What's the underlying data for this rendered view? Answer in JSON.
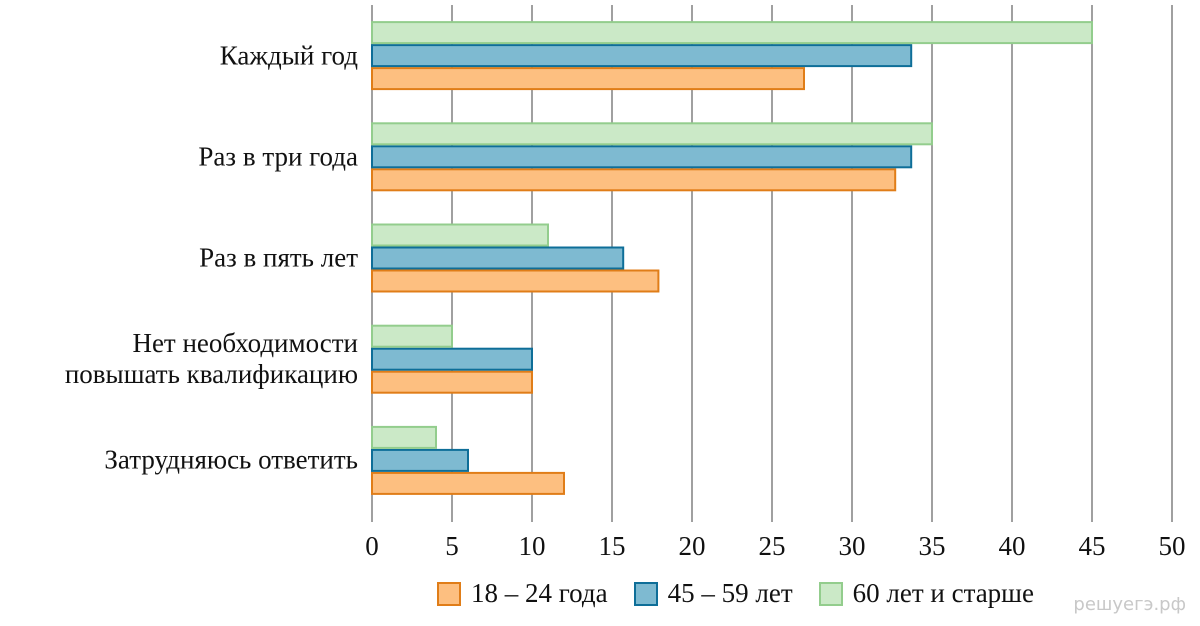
{
  "chart_data": {
    "type": "hbar",
    "categories": [
      "Каждый год",
      "Раз в три года",
      "Раз в пять лет",
      "Нет необходимости\nповышать квалификацию",
      "Затрудняюсь ответить"
    ],
    "series": [
      {
        "name": "18 – 24 года",
        "color": "#fdbf80",
        "edge": "#e07d18",
        "values": [
          27,
          32.7,
          17.9,
          10,
          12
        ]
      },
      {
        "name": "45 – 59 лет",
        "color": "#7ebad1",
        "edge": "#0e6e98",
        "values": [
          33.7,
          33.7,
          15.7,
          10,
          6
        ]
      },
      {
        "name": "60 лет и старше",
        "color": "#cbe9c7",
        "edge": "#93cd8d",
        "values": [
          45,
          35,
          11,
          5,
          4
        ]
      }
    ],
    "xlim": [
      0,
      50
    ],
    "xticks": [
      0,
      5,
      10,
      15,
      20,
      25,
      30,
      35,
      40,
      45,
      50
    ],
    "grid": true,
    "watermark": "решуегэ.рф"
  }
}
